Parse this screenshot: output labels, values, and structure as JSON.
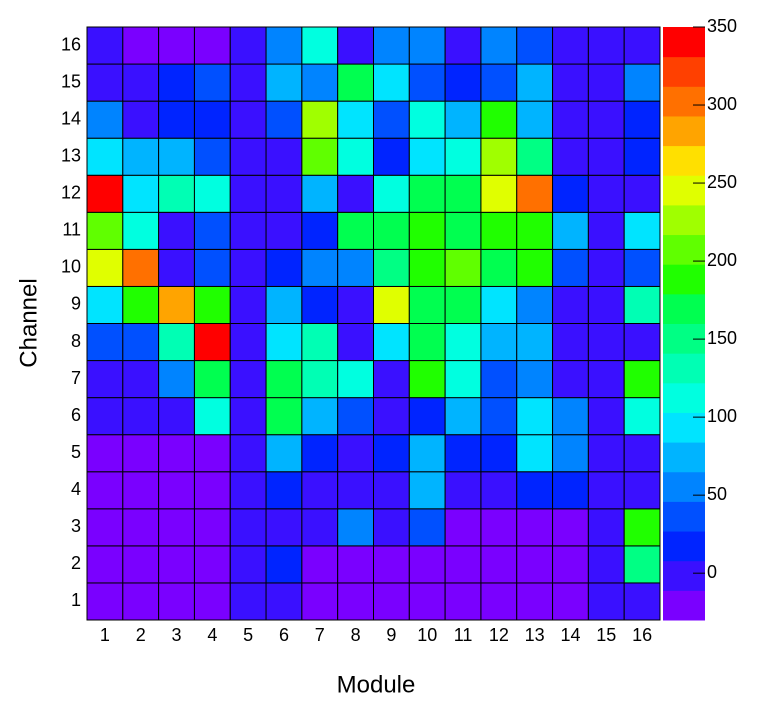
{
  "chart_data": {
    "type": "heatmap",
    "x_label": "Module",
    "y_label": "Channel",
    "x": [
      1,
      2,
      3,
      4,
      5,
      6,
      7,
      8,
      9,
      10,
      11,
      12,
      13,
      14,
      15,
      16
    ],
    "y": [
      1,
      2,
      3,
      4,
      5,
      6,
      7,
      8,
      9,
      10,
      11,
      12,
      13,
      14,
      15,
      16
    ],
    "values": [
      [
        -15,
        -15,
        -15,
        -15,
        0,
        0,
        -15,
        -15,
        -15,
        -15,
        -15,
        -15,
        -15,
        -15,
        0,
        0
      ],
      [
        -15,
        -15,
        -15,
        -15,
        0,
        20,
        -15,
        -15,
        -15,
        -15,
        -15,
        -15,
        -15,
        -15,
        0,
        150
      ],
      [
        -15,
        -15,
        -15,
        -15,
        0,
        0,
        -10,
        55,
        -10,
        35,
        -15,
        -15,
        -15,
        -15,
        0,
        190
      ],
      [
        -15,
        -15,
        -15,
        -15,
        0,
        20,
        0,
        0,
        -5,
        75,
        0,
        -10,
        15,
        15,
        0,
        0
      ],
      [
        -15,
        -15,
        -15,
        -15,
        0,
        75,
        20,
        0,
        10,
        75,
        20,
        20,
        100,
        55,
        0,
        0
      ],
      [
        5,
        -10,
        -10,
        115,
        0,
        170,
        80,
        35,
        -5,
        15,
        75,
        35,
        100,
        55,
        0,
        120
      ],
      [
        5,
        5,
        60,
        165,
        0,
        165,
        140,
        120,
        -5,
        190,
        115,
        35,
        55,
        0,
        0,
        190
      ],
      [
        35,
        35,
        140,
        345,
        0,
        100,
        140,
        0,
        100,
        165,
        120,
        80,
        80,
        0,
        0,
        0
      ],
      [
        100,
        195,
        285,
        190,
        0,
        75,
        15,
        -10,
        250,
        170,
        170,
        100,
        60,
        0,
        0,
        140
      ],
      [
        250,
        300,
        0,
        35,
        0,
        20,
        60,
        55,
        150,
        190,
        210,
        165,
        195,
        35,
        0,
        35
      ],
      [
        210,
        115,
        0,
        35,
        0,
        0,
        20,
        165,
        170,
        190,
        170,
        195,
        190,
        75,
        0,
        100
      ],
      [
        345,
        100,
        140,
        115,
        0,
        0,
        80,
        0,
        120,
        170,
        170,
        250,
        305,
        15,
        0,
        0
      ],
      [
        100,
        75,
        80,
        35,
        0,
        0,
        210,
        120,
        15,
        100,
        110,
        225,
        150,
        -10,
        0,
        20
      ],
      [
        60,
        5,
        15,
        15,
        0,
        35,
        225,
        100,
        35,
        110,
        75,
        195,
        80,
        0,
        0,
        20
      ],
      [
        0,
        -10,
        20,
        35,
        0,
        80,
        60,
        165,
        100,
        35,
        20,
        35,
        80,
        0,
        0,
        60
      ],
      [
        0,
        -15,
        -15,
        -20,
        0,
        60,
        115,
        0,
        60,
        60,
        0,
        55,
        35,
        0,
        0,
        0
      ]
    ],
    "zlim": [
      -30,
      350
    ],
    "zticks": [
      0,
      50,
      100,
      150,
      200,
      250,
      300,
      350
    ],
    "colors": [
      "#7a00ff",
      "#3a10ff",
      "#0024ff",
      "#0050ff",
      "#0084ff",
      "#00b4ff",
      "#00e4ff",
      "#00ffe0",
      "#00ffb4",
      "#00ff84",
      "#00ff50",
      "#20ff00",
      "#60ff00",
      "#a0ff00",
      "#e0ff00",
      "#ffe000",
      "#ffa400",
      "#ff7000",
      "#ff4000",
      "#ff0000"
    ]
  }
}
